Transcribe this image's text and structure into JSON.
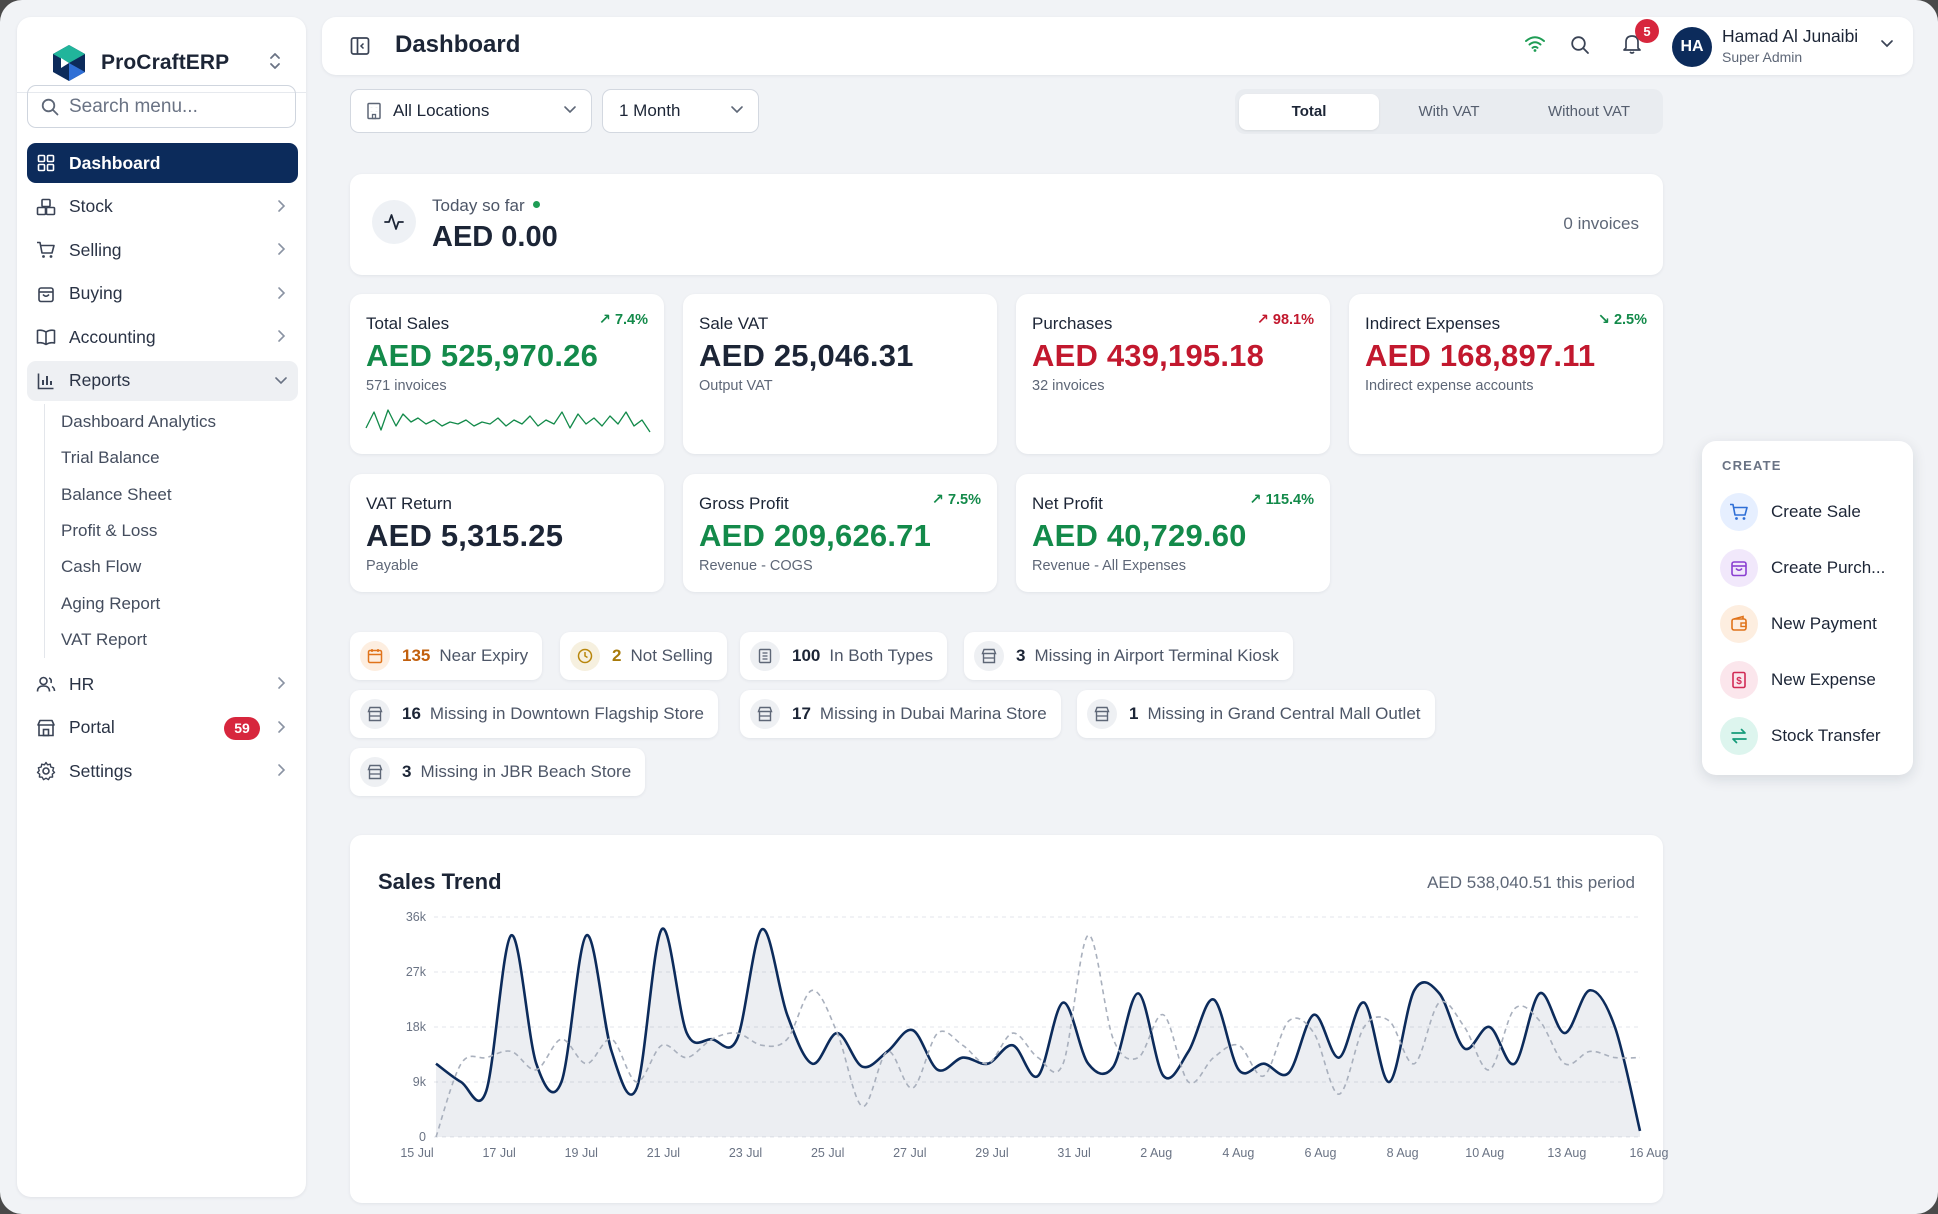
{
  "brand": {
    "name": "ProCraftERP"
  },
  "search": {
    "placeholder": "Search menu..."
  },
  "nav": {
    "dashboard": "Dashboard",
    "stock": "Stock",
    "selling": "Selling",
    "buying": "Buying",
    "accounting": "Accounting",
    "reports": "Reports",
    "reports_sub": [
      "Dashboard Analytics",
      "Trial Balance",
      "Balance Sheet",
      "Profit & Loss",
      "Cash Flow",
      "Aging Report",
      "VAT Report"
    ],
    "hr": "HR",
    "portal": "Portal",
    "portal_badge": "59",
    "settings": "Settings"
  },
  "topbar": {
    "title": "Dashboard",
    "notifications": "5",
    "user_initials": "HA",
    "user_name": "Hamad Al Junaibi",
    "user_role": "Super Admin"
  },
  "filters": {
    "location": "All Locations",
    "period": "1 Month",
    "vat_modes": [
      "Total",
      "With VAT",
      "Without VAT"
    ],
    "vat_selected": "Total"
  },
  "today": {
    "label": "Today so far",
    "value": "AED 0.00",
    "invoices": "0 invoices"
  },
  "kpis": {
    "total_sales": {
      "label": "Total Sales",
      "value": "AED 525,970.26",
      "sub": "571 invoices",
      "trend": "7.4%",
      "trend_dir": "up"
    },
    "sale_vat": {
      "label": "Sale VAT",
      "value": "AED 25,046.31",
      "sub": "Output VAT"
    },
    "purchases": {
      "label": "Purchases",
      "value": "AED 439,195.18",
      "sub": "32 invoices",
      "trend": "98.1%",
      "trend_dir": "up"
    },
    "indirect": {
      "label": "Indirect Expenses",
      "value": "AED 168,897.11",
      "sub": "Indirect expense accounts",
      "trend": "2.5%",
      "trend_dir": "down"
    },
    "vat_return": {
      "label": "VAT Return",
      "value": "AED 5,315.25",
      "sub": "Payable"
    },
    "gross_profit": {
      "label": "Gross Profit",
      "value": "AED 209,626.71",
      "sub": "Revenue - COGS",
      "trend": "7.5%",
      "trend_dir": "up"
    },
    "net_profit": {
      "label": "Net Profit",
      "value": "AED 40,729.60",
      "sub": "Revenue - All Expenses",
      "trend": "115.4%",
      "trend_dir": "up"
    }
  },
  "alerts": [
    {
      "count": "135",
      "text": "Near Expiry",
      "icon": "calendar-icon",
      "tone": "orange"
    },
    {
      "count": "2",
      "text": "Not Selling",
      "icon": "clock-icon",
      "tone": "gold"
    },
    {
      "count": "100",
      "text": "In Both Types",
      "icon": "building-icon",
      "tone": "grey"
    },
    {
      "count": "3",
      "text": "Missing in Airport Terminal Kiosk",
      "icon": "store-icon",
      "tone": "grey"
    },
    {
      "count": "16",
      "text": "Missing in Downtown Flagship Store",
      "icon": "store-icon",
      "tone": "grey"
    },
    {
      "count": "17",
      "text": "Missing in Dubai Marina Store",
      "icon": "store-icon",
      "tone": "grey"
    },
    {
      "count": "1",
      "text": "Missing in Grand Central Mall Outlet",
      "icon": "store-icon",
      "tone": "grey"
    },
    {
      "count": "3",
      "text": "Missing in JBR Beach Store",
      "icon": "store-icon",
      "tone": "grey"
    }
  ],
  "create_menu": {
    "title": "CREATE",
    "items": [
      {
        "label": "Create Sale",
        "icon": "cart-icon",
        "color": "#2f6fd6"
      },
      {
        "label": "Create Purch...",
        "icon": "bag-icon",
        "color": "#8a3fd1"
      },
      {
        "label": "New Payment",
        "icon": "wallet-icon",
        "color": "#e0731a"
      },
      {
        "label": "New Expense",
        "icon": "receipt-icon",
        "color": "#d12a55"
      },
      {
        "label": "Stock Transfer",
        "icon": "transfer-icon",
        "color": "#169c7a"
      }
    ]
  },
  "colors": {
    "primary": "#0c2b5b",
    "green": "#138a4a",
    "red": "#c2182e",
    "badge": "#d7263d"
  },
  "chart_data": {
    "type": "line",
    "title": "Sales Trend",
    "summary": "AED 538,040.51 this period",
    "ylim": [
      0,
      36000
    ],
    "yticks": [
      "0",
      "9k",
      "18k",
      "27k",
      "36k"
    ],
    "xticks": [
      "15 Jul",
      "17 Jul",
      "19 Jul",
      "21 Jul",
      "23 Jul",
      "25 Jul",
      "27 Jul",
      "29 Jul",
      "31 Jul",
      "2 Aug",
      "4 Aug",
      "6 Aug",
      "8 Aug",
      "10 Aug",
      "13 Aug",
      "16 Aug"
    ],
    "grid": true,
    "series": [
      {
        "style": "solid-area",
        "values": [
          12000,
          9000,
          7500,
          33000,
          12000,
          9000,
          33000,
          14000,
          8000,
          34000,
          17000,
          16000,
          16000,
          34000,
          20000,
          12000,
          17000,
          11500,
          14000,
          17500,
          11000,
          13000,
          12000,
          15000,
          10000,
          22000,
          12000,
          11500,
          23500,
          10000,
          14000,
          22500,
          11000,
          12000,
          10500,
          20000,
          13000,
          22000,
          9000,
          24000,
          23500,
          14500,
          18000,
          12000,
          23500,
          17000,
          24000,
          18000,
          1000
        ]
      },
      {
        "style": "dashed",
        "values": [
          0,
          12000,
          13000,
          14000,
          11000,
          16000,
          12000,
          16000,
          9000,
          15000,
          13000,
          16000,
          17000,
          15000,
          16000,
          24000,
          17000,
          5000,
          14000,
          8000,
          17000,
          15000,
          12000,
          17000,
          13000,
          12000,
          33000,
          16000,
          13000,
          20000,
          9000,
          13000,
          15000,
          10000,
          19000,
          17000,
          7000,
          18000,
          19000,
          12000,
          22000,
          18000,
          11000,
          21000,
          19000,
          12000,
          14000,
          13000,
          13000
        ]
      }
    ]
  }
}
